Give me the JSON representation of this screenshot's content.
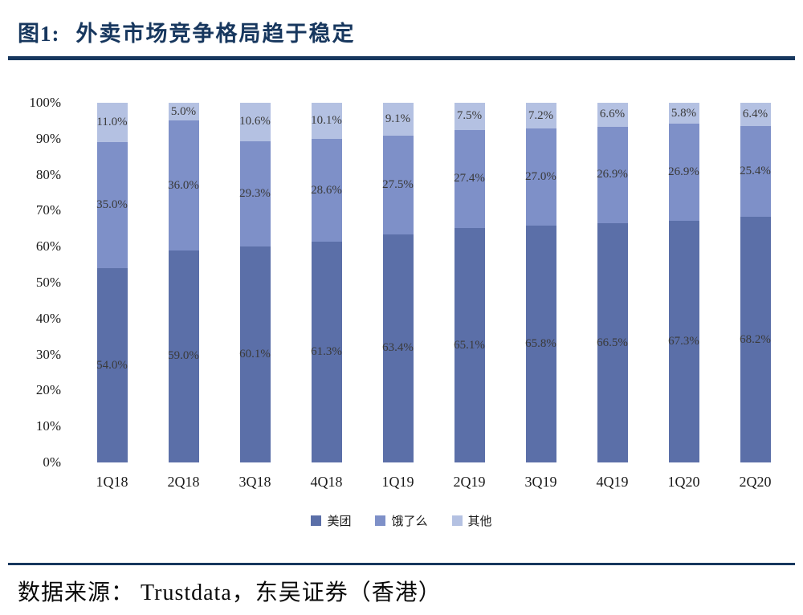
{
  "header": {
    "figure_label": "图1:",
    "title": "外卖市场竞争格局趋于稳定"
  },
  "footer": {
    "source": "数据来源： Trustdata，东吴证券（香港）"
  },
  "chart_data": {
    "type": "bar",
    "stacked": true,
    "percent_stacked": true,
    "title": "外卖市场竞争格局趋于稳定",
    "unit": "%",
    "categories": [
      "1Q18",
      "2Q18",
      "3Q18",
      "4Q18",
      "1Q19",
      "2Q19",
      "3Q19",
      "4Q19",
      "1Q20",
      "2Q20"
    ],
    "series": [
      {
        "name": "美团",
        "key": "meituan",
        "color": "#5B6FA8",
        "values": [
          54.0,
          59.0,
          60.1,
          61.3,
          63.4,
          65.1,
          65.8,
          66.5,
          67.3,
          68.2
        ]
      },
      {
        "name": "饿了么",
        "key": "eleme",
        "color": "#7E90C8",
        "values": [
          35.0,
          36.0,
          29.3,
          28.6,
          27.5,
          27.4,
          27.0,
          26.9,
          26.9,
          25.4
        ]
      },
      {
        "name": "其他",
        "key": "others",
        "color": "#B4C1E2",
        "values": [
          11.0,
          5.0,
          10.6,
          10.1,
          9.1,
          7.5,
          7.2,
          6.6,
          5.8,
          6.4
        ]
      }
    ],
    "y_axis": {
      "min": 0,
      "max": 100,
      "step": 10,
      "tick_suffix": "%"
    },
    "legend_position": "bottom",
    "grid": false,
    "colors": {
      "title": "#17375E",
      "rule": "#17375E",
      "value_label_text": "#3a3a3a"
    }
  }
}
